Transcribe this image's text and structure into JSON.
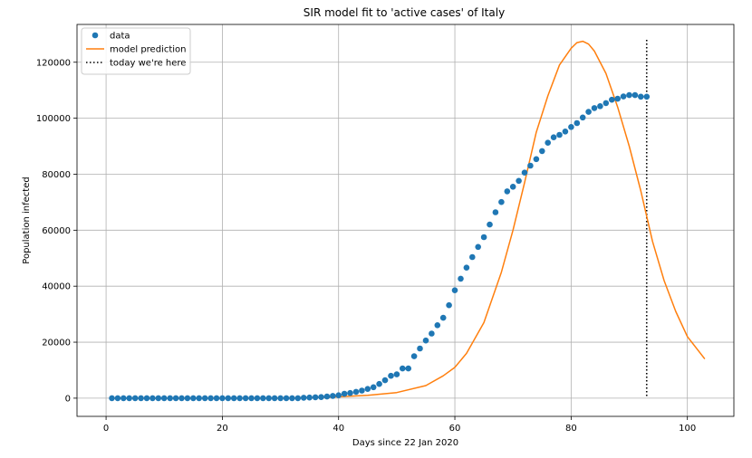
{
  "chart_data": {
    "type": "line",
    "title": "SIR model fit to 'active cases' of Italy",
    "xlabel": "Days since 22 Jan 2020",
    "ylabel": "Population infected",
    "xlim": [
      -5,
      108
    ],
    "ylim": [
      -6500,
      133500
    ],
    "xticks": [
      0,
      20,
      40,
      60,
      80,
      100
    ],
    "xtick_labels": [
      "0",
      "20",
      "40",
      "60",
      "80",
      "100"
    ],
    "yticks": [
      0,
      20000,
      40000,
      60000,
      80000,
      100000,
      120000
    ],
    "ytick_labels": [
      "0",
      "20000",
      "40000",
      "60000",
      "80000",
      "100000",
      "120000"
    ],
    "grid": true,
    "legend_position": "top-left",
    "today_day": 93,
    "today_line_ymax": 128000,
    "series": [
      {
        "name": "data",
        "style": "points",
        "color": "#1f77b4",
        "x": [
          1,
          2,
          3,
          4,
          5,
          6,
          7,
          8,
          9,
          10,
          11,
          12,
          13,
          14,
          15,
          16,
          17,
          18,
          19,
          20,
          21,
          22,
          23,
          24,
          25,
          26,
          27,
          28,
          29,
          30,
          31,
          32,
          33,
          34,
          35,
          36,
          37,
          38,
          39,
          40,
          41,
          42,
          43,
          44,
          45,
          46,
          47,
          48,
          49,
          50,
          51,
          52,
          53,
          54,
          55,
          56,
          57,
          58,
          59,
          60,
          61,
          62,
          63,
          64,
          65,
          66,
          67,
          68,
          69,
          70,
          71,
          72,
          73,
          74,
          75,
          76,
          77,
          78,
          79,
          80,
          81,
          82,
          83,
          84,
          85,
          86,
          87,
          88,
          89,
          90,
          91,
          92,
          93
        ],
        "y": [
          0,
          0,
          0,
          0,
          0,
          0,
          0,
          0,
          0,
          0,
          0,
          0,
          0,
          0,
          0,
          0,
          0,
          0,
          0,
          0,
          0,
          0,
          0,
          0,
          0,
          0,
          0,
          0,
          0,
          0,
          0,
          0,
          0,
          150,
          221,
          311,
          385,
          588,
          821,
          1049,
          1577,
          1835,
          2263,
          2706,
          3296,
          3916,
          5061,
          6387,
          7985,
          8514,
          10590,
          10590,
          14955,
          17750,
          20603,
          23073,
          26062,
          28710,
          33190,
          38549,
          42681,
          46638,
          50418,
          54030,
          57521,
          62013,
          66414,
          70065,
          73880,
          75528,
          77635,
          80572,
          83049,
          85388,
          88274,
          91246,
          93187,
          94067,
          95262,
          96877,
          98273,
          100269,
          102253,
          103616,
          104291,
          105418,
          106607,
          106962,
          107771,
          108257,
          108237,
          107709,
          107699
        ]
      },
      {
        "name": "model prediction",
        "style": "line",
        "color": "#ff7f0e",
        "x": [
          1,
          10,
          20,
          30,
          35,
          40,
          45,
          50,
          55,
          58,
          60,
          62,
          65,
          68,
          70,
          72,
          74,
          76,
          78,
          80,
          81,
          82,
          83,
          84,
          86,
          88,
          90,
          92,
          94,
          96,
          98,
          100,
          103
        ],
        "y": [
          0,
          0,
          0,
          50,
          150,
          500,
          1000,
          2000,
          4500,
          8000,
          11000,
          16000,
          27000,
          45000,
          60000,
          77000,
          95000,
          108000,
          119000,
          125000,
          127000,
          127500,
          126500,
          124000,
          116000,
          104000,
          90000,
          74000,
          56000,
          42000,
          31000,
          22000,
          14000
        ]
      }
    ],
    "legend": [
      {
        "label": "data",
        "marker": "dot",
        "color": "#1f77b4"
      },
      {
        "label": "model prediction",
        "marker": "line",
        "color": "#ff7f0e"
      },
      {
        "label": "today we're here",
        "marker": "dotted-line",
        "color": "#000000"
      }
    ]
  }
}
